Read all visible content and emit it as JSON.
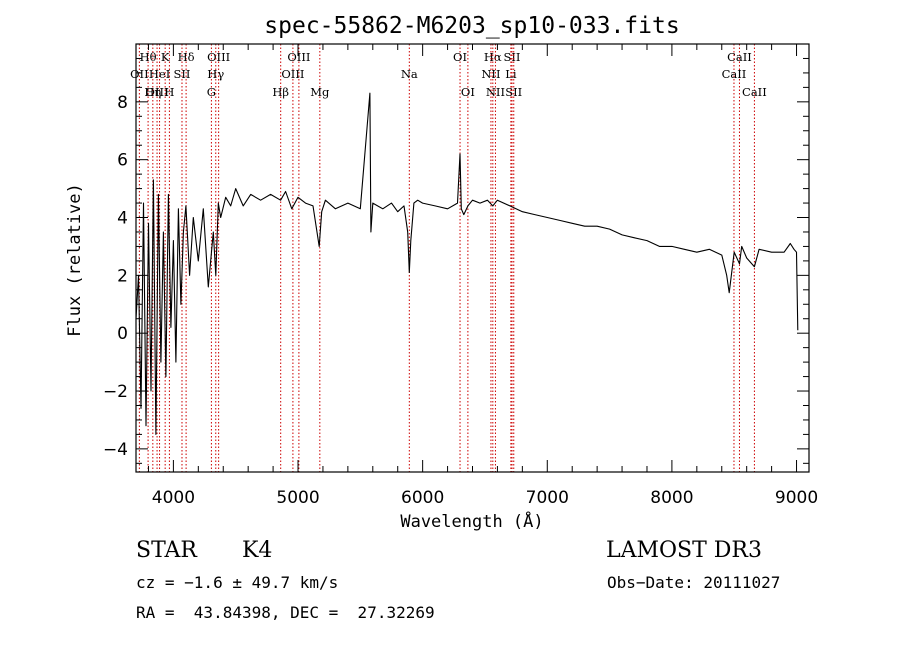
{
  "chart_data": {
    "type": "line",
    "title": "spec-55862-M6203_sp10-033.fits",
    "xlabel": "Wavelength (Å)",
    "ylabel": "Flux (relative)",
    "xlim": [
      3700,
      9100
    ],
    "ylim": [
      -4.8,
      10.0
    ],
    "xticks": [
      4000,
      5000,
      6000,
      7000,
      8000,
      9000
    ],
    "yticks": [
      -4,
      -2,
      0,
      2,
      4,
      6,
      8
    ],
    "grid": false,
    "series": [
      {
        "name": "spectrum",
        "color": "#000000",
        "x": [
          3700,
          3720,
          3740,
          3760,
          3780,
          3800,
          3820,
          3840,
          3860,
          3880,
          3900,
          3920,
          3940,
          3960,
          3980,
          4000,
          4020,
          4040,
          4060,
          4080,
          4100,
          4130,
          4160,
          4200,
          4240,
          4280,
          4320,
          4340,
          4360,
          4380,
          4420,
          4460,
          4500,
          4560,
          4620,
          4700,
          4780,
          4860,
          4900,
          4950,
          5000,
          5060,
          5120,
          5170,
          5190,
          5220,
          5300,
          5400,
          5500,
          5577,
          5585,
          5600,
          5680,
          5750,
          5800,
          5850,
          5880,
          5893,
          5905,
          5930,
          5960,
          6000,
          6100,
          6200,
          6280,
          6300,
          6310,
          6330,
          6363,
          6400,
          6460,
          6520,
          6563,
          6600,
          6700,
          6800,
          6900,
          7000,
          7100,
          7200,
          7300,
          7400,
          7500,
          7600,
          7700,
          7800,
          7900,
          8000,
          8100,
          8200,
          8300,
          8400,
          8440,
          8460,
          8500,
          8542,
          8560,
          8600,
          8662,
          8700,
          8800,
          8900,
          8950,
          8980,
          9000,
          9010
        ],
        "y": [
          0.5,
          2.0,
          -2.6,
          4.5,
          -3.2,
          3.8,
          -2.0,
          5.3,
          -3.5,
          4.8,
          -1.0,
          3.5,
          -1.5,
          4.8,
          0.2,
          3.2,
          -1.0,
          4.3,
          1.0,
          3.5,
          4.4,
          2.0,
          4.0,
          2.5,
          4.3,
          1.6,
          3.5,
          2.0,
          4.5,
          4.0,
          4.7,
          4.4,
          5.0,
          4.4,
          4.8,
          4.6,
          4.8,
          4.6,
          4.9,
          4.3,
          4.7,
          4.5,
          4.4,
          3.0,
          4.2,
          4.6,
          4.3,
          4.5,
          4.3,
          8.3,
          3.5,
          4.5,
          4.3,
          4.5,
          4.2,
          4.4,
          3.5,
          2.1,
          3.2,
          4.5,
          4.6,
          4.5,
          4.4,
          4.3,
          4.5,
          6.2,
          4.3,
          4.1,
          4.4,
          4.6,
          4.5,
          4.6,
          4.4,
          4.6,
          4.4,
          4.2,
          4.1,
          4.0,
          3.9,
          3.8,
          3.7,
          3.7,
          3.6,
          3.4,
          3.3,
          3.2,
          3.0,
          3.0,
          2.9,
          2.8,
          2.9,
          2.7,
          2.0,
          1.4,
          2.8,
          2.4,
          3.0,
          2.6,
          2.3,
          2.9,
          2.8,
          2.8,
          3.1,
          2.9,
          2.8,
          0.1
        ]
      }
    ],
    "lines": [
      {
        "label": "Hθ",
        "wave": 3797,
        "row": 0
      },
      {
        "label": "OII",
        "wave": 3727,
        "row": 1
      },
      {
        "label": "OIII",
        "wave": 3869,
        "row": 2
      },
      {
        "label": "K",
        "wave": 3934,
        "row": 0
      },
      {
        "label": "HeI",
        "wave": 3889,
        "row": 1
      },
      {
        "label": "Hη",
        "wave": 3835,
        "row": 2
      },
      {
        "label": "H",
        "wave": 3968,
        "row": 2
      },
      {
        "label": "Hδ",
        "wave": 4102,
        "row": 0
      },
      {
        "label": "SII",
        "wave": 4069,
        "row": 1
      },
      {
        "label": "OIII",
        "wave": 4363,
        "row": 0
      },
      {
        "label": "Hγ",
        "wave": 4340,
        "row": 1
      },
      {
        "label": "G",
        "wave": 4305,
        "row": 2
      },
      {
        "label": "OIII",
        "wave": 5007,
        "row": 0
      },
      {
        "label": "OIII",
        "wave": 4959,
        "row": 1
      },
      {
        "label": "Hβ",
        "wave": 4861,
        "row": 2
      },
      {
        "label": "Mg",
        "wave": 5175,
        "row": 2
      },
      {
        "label": "Na",
        "wave": 5893,
        "row": 1
      },
      {
        "label": "OI",
        "wave": 6300,
        "row": 0
      },
      {
        "label": "OI",
        "wave": 6363,
        "row": 2
      },
      {
        "label": "Hα",
        "wave": 6563,
        "row": 0
      },
      {
        "label": "SII",
        "wave": 6717,
        "row": 0
      },
      {
        "label": "NII",
        "wave": 6548,
        "row": 1
      },
      {
        "label": "Li",
        "wave": 6708,
        "row": 1
      },
      {
        "label": "NII",
        "wave": 6584,
        "row": 2
      },
      {
        "label": "SII",
        "wave": 6731,
        "row": 2
      },
      {
        "label": "CaII",
        "wave": 8542,
        "row": 0
      },
      {
        "label": "CaII",
        "wave": 8498,
        "row": 1
      },
      {
        "label": "CaII",
        "wave": 8662,
        "row": 2
      }
    ],
    "line_color": "#cc0000"
  },
  "footer": {
    "class": "STAR",
    "subclass": "K4",
    "survey": "LAMOST DR3",
    "cz": "cz = −1.6 ± 49.7 km/s",
    "obs_date": "Obs−Date: 20111027",
    "radec": "RA =  43.84398, DEC =  27.32269"
  }
}
